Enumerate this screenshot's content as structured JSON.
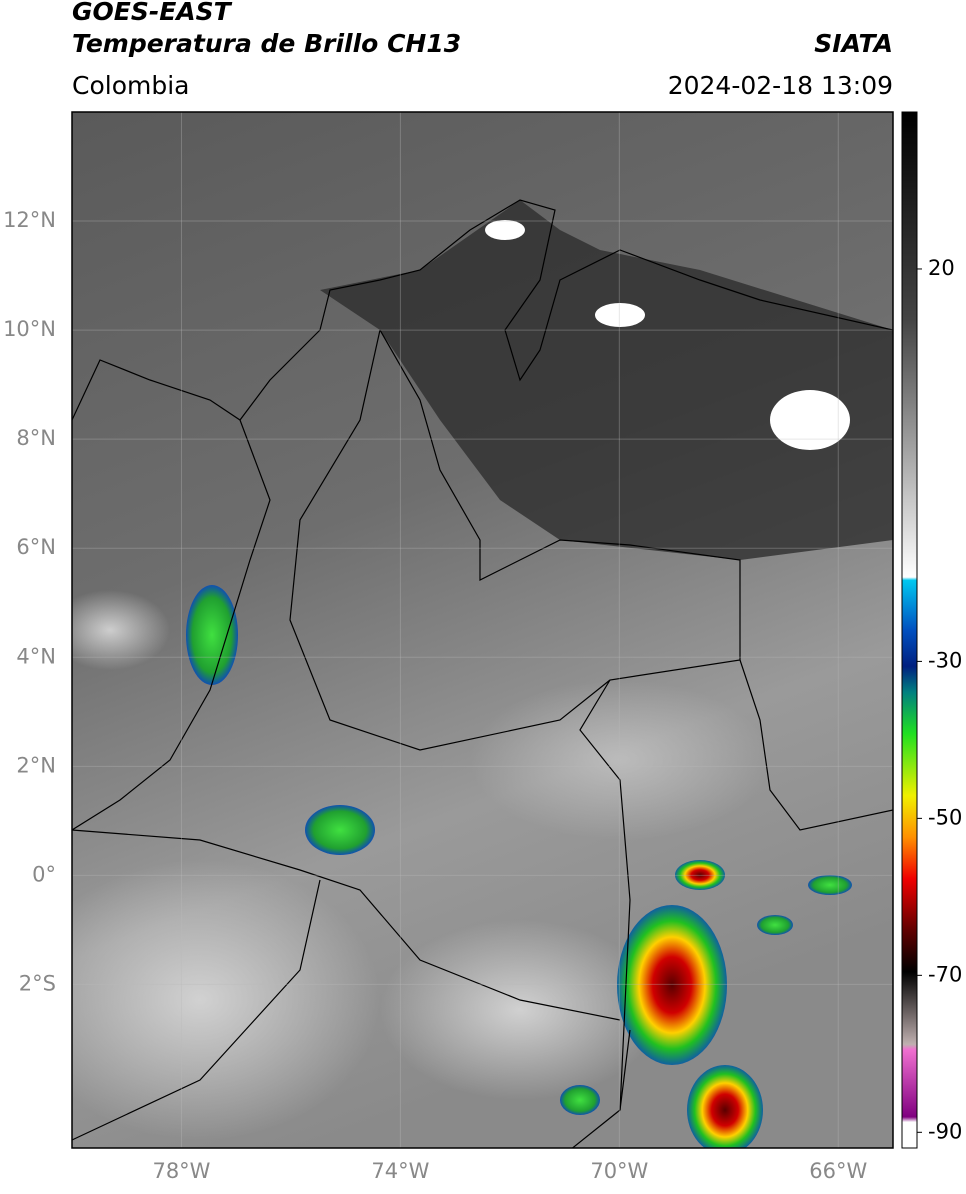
{
  "header": {
    "title": "GOES-EAST",
    "subtitle": "Temperatura de Brillo CH13",
    "region": "Colombia",
    "source": "SIATA",
    "datetime": "2024-02-18 13:09"
  },
  "map": {
    "xlim": [
      -80,
      -65
    ],
    "ylim": [
      -5,
      14
    ],
    "xticks": [
      {
        "value": -78,
        "label": "78°W"
      },
      {
        "value": -74,
        "label": "74°W"
      },
      {
        "value": -70,
        "label": "70°W"
      },
      {
        "value": -66,
        "label": "66°W"
      }
    ],
    "yticks": [
      {
        "value": 12,
        "label": "12°N"
      },
      {
        "value": 10,
        "label": "10°N"
      },
      {
        "value": 8,
        "label": "8°N"
      },
      {
        "value": 6,
        "label": "6°N"
      },
      {
        "value": 4,
        "label": "4°N"
      },
      {
        "value": 2,
        "label": "2°N"
      },
      {
        "value": 0,
        "label": "0°"
      },
      {
        "value": -2,
        "label": "2°S"
      }
    ],
    "grid": true
  },
  "colorbar": {
    "lim": [
      -92,
      40
    ],
    "ticks": [
      20,
      -30,
      -50,
      -70,
      -90
    ]
  }
}
